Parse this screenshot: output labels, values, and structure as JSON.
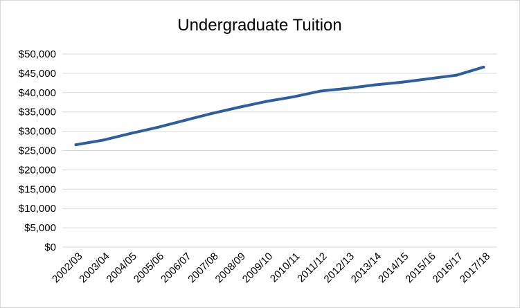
{
  "chart_data": {
    "type": "line",
    "title": "Undergraduate Tuition",
    "xlabel": "",
    "ylabel": "",
    "categories": [
      "2002/03",
      "2003/04",
      "2004/05",
      "2005/06",
      "2006/07",
      "2007/08",
      "2008/09",
      "2009/10",
      "2010/11",
      "2011/12",
      "2012/13",
      "2013/14",
      "2014/15",
      "2015/16",
      "2016/17",
      "2017/18"
    ],
    "series": [
      {
        "values": [
          26500,
          27700,
          29400,
          31000,
          32800,
          34600,
          36200,
          37700,
          38900,
          40400,
          41100,
          42000,
          42700,
          43600,
          44500,
          46600
        ],
        "color": "#2c5ea1"
      }
    ],
    "ylim": [
      0,
      50000
    ],
    "yticks": [
      "$0",
      "$5,000",
      "$10,000",
      "$15,000",
      "$20,000",
      "$25,000",
      "$30,000",
      "$35,000",
      "$40,000",
      "$45,000",
      "$50,000"
    ],
    "grid": true,
    "legend": "none",
    "gridline_color": "#d9d9d9"
  }
}
